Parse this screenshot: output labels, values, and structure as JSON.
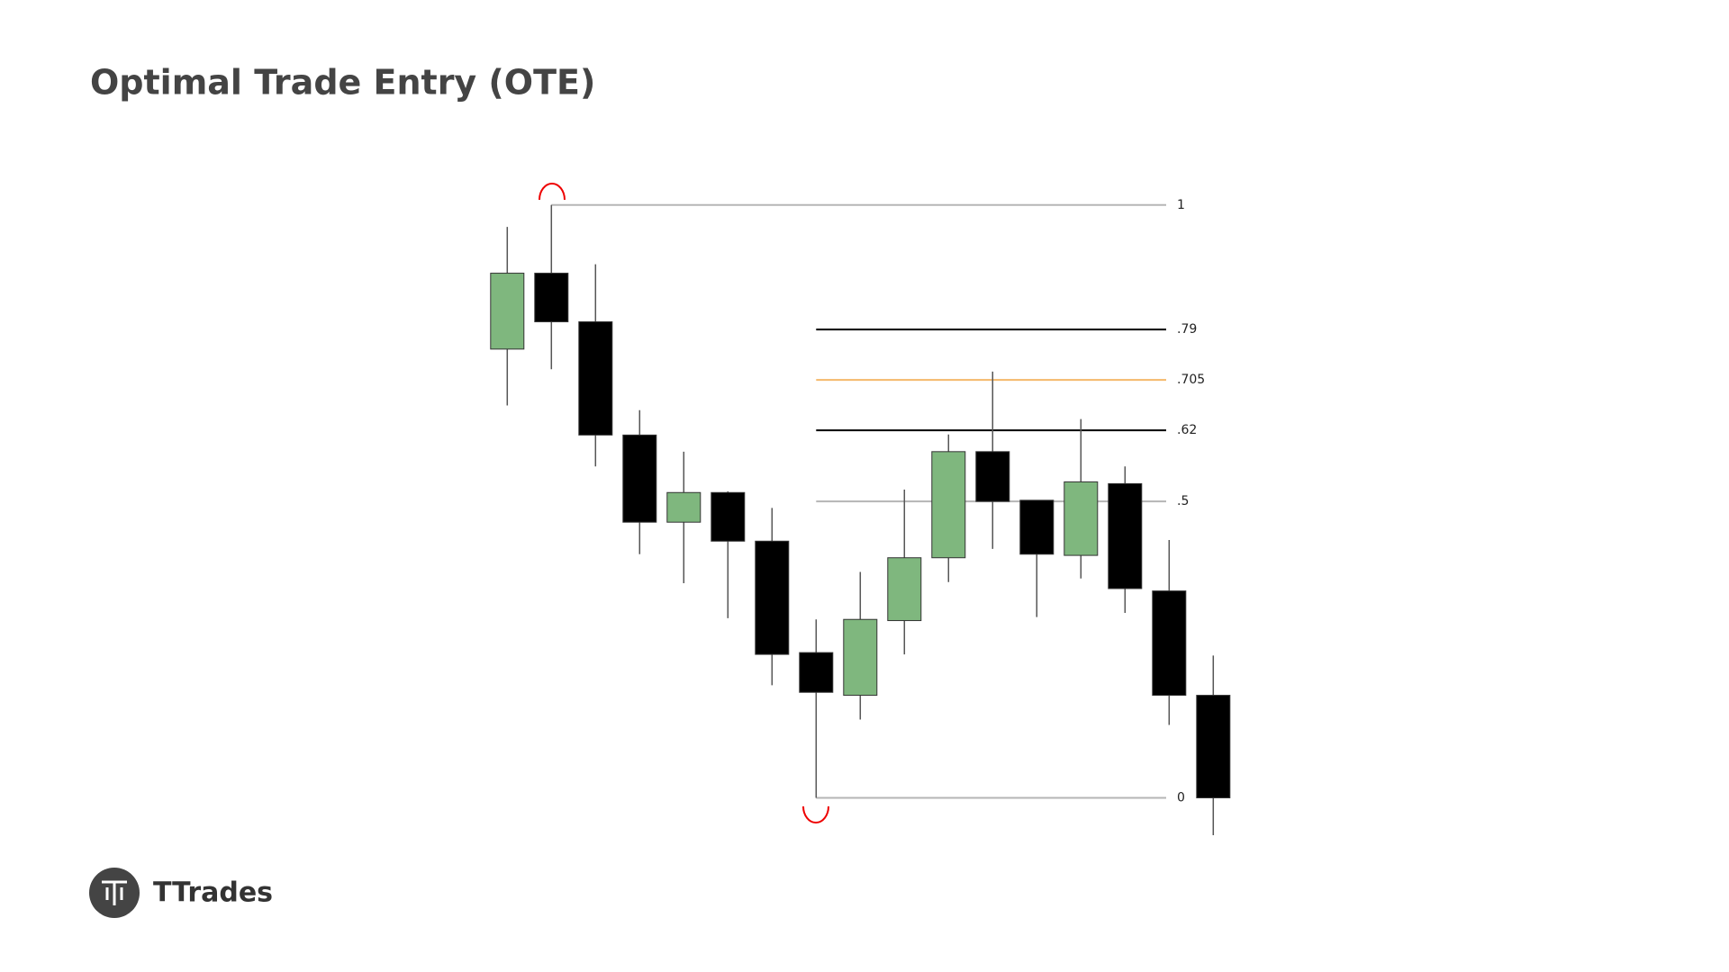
{
  "chart_data": {
    "type": "candlestick",
    "title": "Optimal Trade Entry (OTE)",
    "brand": "TTrades",
    "open": [
      0.757,
      0.885,
      0.803,
      0.612,
      0.465,
      0.515,
      0.433,
      0.245,
      0.173,
      0.299,
      0.405,
      0.584,
      0.502,
      0.409,
      0.53,
      0.349,
      0.173
    ],
    "high": [
      0.963,
      1.0,
      0.9,
      0.654,
      0.584,
      0.517,
      0.489,
      0.301,
      0.381,
      0.52,
      0.613,
      0.719,
      0.502,
      0.639,
      0.559,
      0.435,
      0.24
    ],
    "low": [
      0.662,
      0.723,
      0.559,
      0.411,
      0.362,
      0.303,
      0.19,
      0,
      0.132,
      0.242,
      0.364,
      0.42,
      0.305,
      0.37,
      0.312,
      0.123,
      -0.063
    ],
    "close": [
      0.885,
      0.803,
      0.612,
      0.465,
      0.515,
      0.433,
      0.242,
      0.178,
      0.301,
      0.405,
      0.584,
      0.5,
      0.411,
      0.533,
      0.353,
      0.173,
      0
    ],
    "up_color": "#7fb77e",
    "down_color": "#000000",
    "ylim": [
      0,
      1
    ],
    "levels": [
      1,
      {
        "value": 0.79,
        "label": ".79"
      },
      {
        "value": 0.705,
        "label": ".705"
      },
      {
        "value": 0.62,
        "label": ".62"
      },
      {
        "value": 0.5,
        "label": ".5"
      },
      0
    ],
    "level_colors": [
      "#b5b5b5",
      "#000000",
      "#f5b86a",
      "#000000",
      "#b5b5b5",
      "#b5b5b5"
    ]
  }
}
